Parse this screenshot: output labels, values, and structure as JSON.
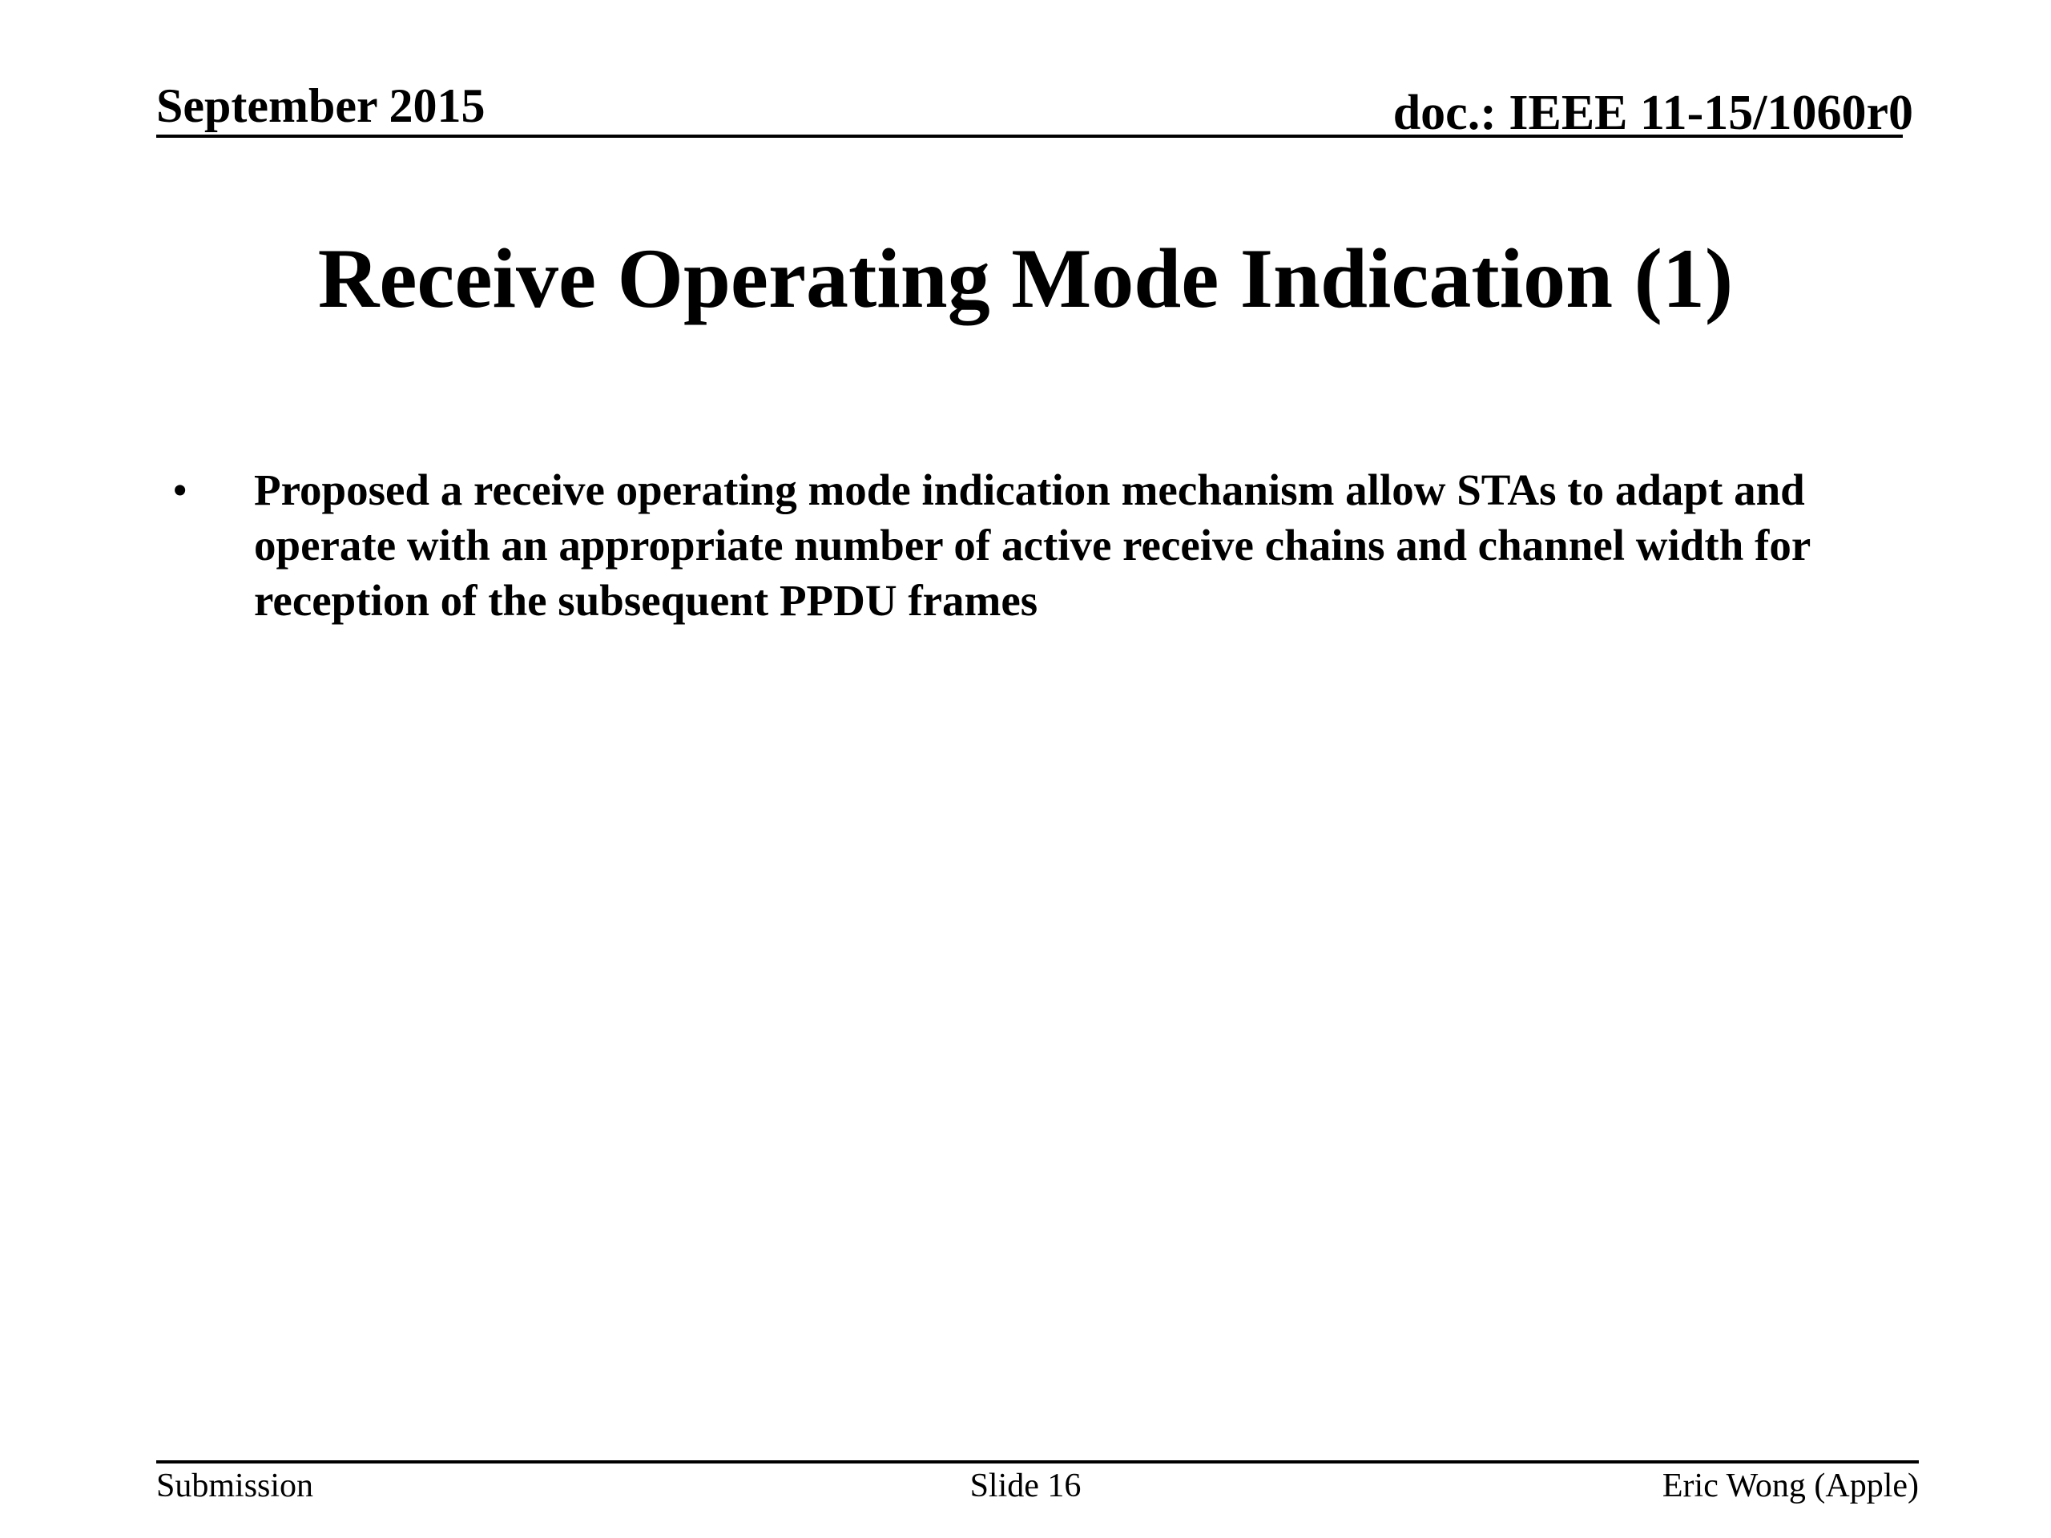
{
  "header": {
    "date": "September 2015",
    "doc_id": "doc.: IEEE 11-15/1060r0"
  },
  "title": "Receive Operating Mode Indication (1)",
  "body": {
    "bullet_glyph": "•",
    "bullets": [
      "Proposed a receive operating mode indication mechanism allow STAs to adapt and operate with an appropriate number of active receive chains and channel width for reception of the subsequent PPDU frames"
    ]
  },
  "footer": {
    "left": "Submission",
    "center": "Slide 16",
    "right": "Eric Wong (Apple)"
  }
}
